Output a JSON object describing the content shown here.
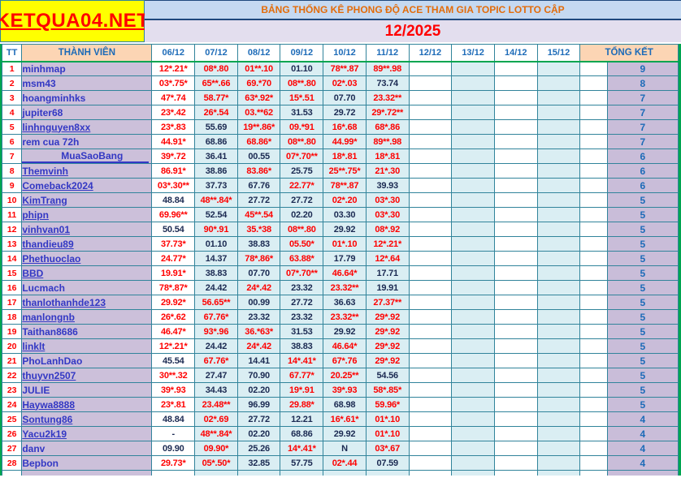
{
  "logo": {
    "text": "KETQUA04.NET"
  },
  "header": {
    "title": "BẢNG THỐNG KÊ PHONG ĐỘ ACE THAM GIA TOPIC  LOTTO CẬP",
    "month": "12/2025"
  },
  "columns": {
    "tt": "TT",
    "member": "THÀNH VIÊN",
    "dates": [
      "06/12",
      "07/12",
      "08/12",
      "09/12",
      "10/12",
      "11/12",
      "12/12",
      "13/12",
      "14/12",
      "15/12"
    ],
    "total": "TỔNG KẾT"
  },
  "colors": {
    "grid_border": "#31849b",
    "green_border": "#00a550",
    "red_value": "#ff0000",
    "dark_value": "#1b2a52",
    "name_blue": "#3338c4",
    "header_blue": "#1d6bb8",
    "name_bg": "#ccc0da",
    "pale_blue_bg": "#daeef3",
    "peach_bg": "#fcd5b4",
    "logo_bg": "#ffff00",
    "title_text": "#e36c0a",
    "title_bg": "#c5d9f1",
    "month_bg": "#e3deee",
    "total_bg": "#c9bdd9"
  },
  "blue_date_columns": [
    1,
    2,
    3,
    4,
    5,
    7,
    9
  ],
  "rows": [
    {
      "tt": "1",
      "name": "minhmap",
      "u": 0,
      "ind": 0,
      "total": "9",
      "vals": [
        [
          "12*.21*",
          "r"
        ],
        [
          "08*.80",
          "r"
        ],
        [
          "01**.10",
          "r"
        ],
        [
          "01.10",
          "d"
        ],
        [
          "78**.87",
          "r"
        ],
        [
          "89**.98",
          "r"
        ]
      ]
    },
    {
      "tt": "2",
      "name": "msm43",
      "u": 0,
      "ind": 0,
      "total": "8",
      "vals": [
        [
          "03*.75*",
          "r"
        ],
        [
          "65**.66",
          "r"
        ],
        [
          "69.*70",
          "r"
        ],
        [
          "08**.80",
          "r"
        ],
        [
          "02*.03",
          "r"
        ],
        [
          "73.74",
          "d"
        ]
      ]
    },
    {
      "tt": "3",
      "name": "hoangminhks",
      "u": 0,
      "ind": 0,
      "total": "7",
      "vals": [
        [
          "47*.74",
          "r"
        ],
        [
          "58.77*",
          "r"
        ],
        [
          "63*.92*",
          "r"
        ],
        [
          "15*.51",
          "r"
        ],
        [
          "07.70",
          "d"
        ],
        [
          "23.32**",
          "r"
        ]
      ]
    },
    {
      "tt": "4",
      "name": "jupiter68",
      "u": 0,
      "ind": 0,
      "total": "7",
      "vals": [
        [
          "23*.42",
          "r"
        ],
        [
          "26*.54",
          "r"
        ],
        [
          "03.**62",
          "r"
        ],
        [
          "31.53",
          "d"
        ],
        [
          "29.72",
          "d"
        ],
        [
          "29*.72**",
          "r"
        ]
      ]
    },
    {
      "tt": "5",
      "name": "linhnguyen8xx",
      "u": 1,
      "ind": 0,
      "total": "7",
      "vals": [
        [
          "23*.83",
          "r"
        ],
        [
          "55.69",
          "d"
        ],
        [
          "19**.86*",
          "r"
        ],
        [
          "09.*91",
          "r"
        ],
        [
          "16*.68",
          "r"
        ],
        [
          "68*.86",
          "r"
        ]
      ]
    },
    {
      "tt": "6",
      "name": "rem cua 72h",
      "u": 0,
      "ind": 0,
      "total": "7",
      "vals": [
        [
          "44.91*",
          "r"
        ],
        [
          "68.86",
          "d"
        ],
        [
          "68.86*",
          "r"
        ],
        [
          "08**.80",
          "r"
        ],
        [
          "44.99*",
          "r"
        ],
        [
          "89**.98",
          "r"
        ]
      ]
    },
    {
      "tt": "7",
      "name": "MuaSaoBang",
      "u": 1,
      "ind": 1,
      "total": "6",
      "vals": [
        [
          "39*.72",
          "r"
        ],
        [
          "36.41",
          "d"
        ],
        [
          "00.55",
          "d"
        ],
        [
          "07*.70**",
          "r"
        ],
        [
          "18*.81",
          "r"
        ],
        [
          "18*.81",
          "r"
        ]
      ]
    },
    {
      "tt": "8",
      "name": "Themvinh",
      "u": 1,
      "ind": 0,
      "total": "6",
      "vals": [
        [
          "86.91*",
          "r"
        ],
        [
          "38.86",
          "d"
        ],
        [
          "83.86*",
          "r"
        ],
        [
          "25.75",
          "d"
        ],
        [
          "25**.75*",
          "r"
        ],
        [
          "21*.30",
          "r"
        ]
      ]
    },
    {
      "tt": "9",
      "name": "Comeback2024",
      "u": 1,
      "ind": 0,
      "total": "6",
      "vals": [
        [
          "03*.30**",
          "r"
        ],
        [
          "37.73",
          "d"
        ],
        [
          "67.76",
          "d"
        ],
        [
          "22.77*",
          "r"
        ],
        [
          "78**.87",
          "r"
        ],
        [
          "39.93",
          "d"
        ]
      ]
    },
    {
      "tt": "10",
      "name": "KimTrang",
      "u": 1,
      "ind": 0,
      "total": "5",
      "vals": [
        [
          "48.84",
          "d"
        ],
        [
          "48**.84*",
          "r"
        ],
        [
          "27.72",
          "d"
        ],
        [
          "27.72",
          "d"
        ],
        [
          "02*.20",
          "r"
        ],
        [
          "03*.30",
          "r"
        ]
      ]
    },
    {
      "tt": "11",
      "name": "phipn",
      "u": 1,
      "ind": 0,
      "total": "5",
      "vals": [
        [
          "69.96**",
          "r"
        ],
        [
          "52.54",
          "d"
        ],
        [
          "45**.54",
          "r"
        ],
        [
          "02.20",
          "d"
        ],
        [
          "03.30",
          "d"
        ],
        [
          "03*.30",
          "r"
        ]
      ]
    },
    {
      "tt": "12",
      "name": "vinhvan01",
      "u": 1,
      "ind": 0,
      "total": "5",
      "vals": [
        [
          "50.54",
          "d"
        ],
        [
          "90*.91",
          "r"
        ],
        [
          "35.*38",
          "r"
        ],
        [
          "08**.80",
          "r"
        ],
        [
          "29.92",
          "d"
        ],
        [
          "08*.92",
          "r"
        ]
      ]
    },
    {
      "tt": "13",
      "name": "thandieu89",
      "u": 1,
      "ind": 0,
      "total": "5",
      "vals": [
        [
          "37.73*",
          "r"
        ],
        [
          "01.10",
          "d"
        ],
        [
          "38.83",
          "d"
        ],
        [
          "05.50*",
          "r"
        ],
        [
          "01*.10",
          "r"
        ],
        [
          "12*.21*",
          "r"
        ]
      ]
    },
    {
      "tt": "14",
      "name": "Phethuoclao",
      "u": 1,
      "ind": 0,
      "total": "5",
      "vals": [
        [
          "24.77*",
          "r"
        ],
        [
          "14.37",
          "d"
        ],
        [
          "78*.86*",
          "r"
        ],
        [
          "63.88*",
          "r"
        ],
        [
          "17.79",
          "d"
        ],
        [
          "12*.64",
          "r"
        ]
      ]
    },
    {
      "tt": "15",
      "name": "BBD",
      "u": 1,
      "ind": 0,
      "total": "5",
      "vals": [
        [
          "19.91*",
          "r"
        ],
        [
          "38.83",
          "d"
        ],
        [
          "07.70",
          "d"
        ],
        [
          "07*.70**",
          "r"
        ],
        [
          "46.64*",
          "r"
        ],
        [
          "17.71",
          "d"
        ]
      ]
    },
    {
      "tt": "16",
      "name": "Lucmach",
      "u": 0,
      "ind": 0,
      "total": "5",
      "vals": [
        [
          "78*.87*",
          "r"
        ],
        [
          "24.42",
          "d"
        ],
        [
          "24*.42",
          "r"
        ],
        [
          "23.32",
          "d"
        ],
        [
          "23.32**",
          "r"
        ],
        [
          "19.91",
          "d"
        ]
      ]
    },
    {
      "tt": "17",
      "name": "thanlothanhde123",
      "u": 1,
      "ind": 0,
      "total": "5",
      "vals": [
        [
          "29.92*",
          "r"
        ],
        [
          "56.65**",
          "r"
        ],
        [
          "00.99",
          "d"
        ],
        [
          "27.72",
          "d"
        ],
        [
          "36.63",
          "d"
        ],
        [
          "27.37**",
          "r"
        ]
      ]
    },
    {
      "tt": "18",
      "name": "manlongnb",
      "u": 1,
      "ind": 0,
      "total": "5",
      "vals": [
        [
          "26*.62",
          "r"
        ],
        [
          "67.76*",
          "r"
        ],
        [
          "23.32",
          "d"
        ],
        [
          "23.32",
          "d"
        ],
        [
          "23.32**",
          "r"
        ],
        [
          "29*.92",
          "r"
        ]
      ]
    },
    {
      "tt": "19",
      "name": "Taithan8686",
      "u": 0,
      "ind": 0,
      "total": "5",
      "vals": [
        [
          "46.47*",
          "r"
        ],
        [
          "93*.96",
          "r"
        ],
        [
          "36.*63*",
          "r"
        ],
        [
          "31.53",
          "d"
        ],
        [
          "29.92",
          "d"
        ],
        [
          "29*.92",
          "r"
        ]
      ]
    },
    {
      "tt": "20",
      "name": "linklt",
      "u": 1,
      "ind": 0,
      "total": "5",
      "vals": [
        [
          "12*.21*",
          "r"
        ],
        [
          "24.42",
          "d"
        ],
        [
          "24*.42",
          "r"
        ],
        [
          "38.83",
          "d"
        ],
        [
          "46.64*",
          "r"
        ],
        [
          "29*.92",
          "r"
        ]
      ]
    },
    {
      "tt": "21",
      "name": "PhoLanhDao",
      "u": 0,
      "ind": 0,
      "total": "5",
      "vals": [
        [
          "45.54",
          "d"
        ],
        [
          "67.76*",
          "r"
        ],
        [
          "14.41",
          "d"
        ],
        [
          "14*.41*",
          "r"
        ],
        [
          "67*.76",
          "r"
        ],
        [
          "29*.92",
          "r"
        ]
      ]
    },
    {
      "tt": "22",
      "name": "thuyvn2507",
      "u": 1,
      "ind": 0,
      "total": "5",
      "vals": [
        [
          "30**.32",
          "r"
        ],
        [
          "27.47",
          "d"
        ],
        [
          "70.90",
          "d"
        ],
        [
          "67.77*",
          "r"
        ],
        [
          "20.25**",
          "r"
        ],
        [
          "54.56",
          "d"
        ]
      ]
    },
    {
      "tt": "23",
      "name": "JULIE",
      "u": 0,
      "ind": 0,
      "total": "5",
      "vals": [
        [
          "39*.93",
          "r"
        ],
        [
          "34.43",
          "d"
        ],
        [
          "02.20",
          "d"
        ],
        [
          "19*.91",
          "r"
        ],
        [
          "39*.93",
          "r"
        ],
        [
          "58*.85*",
          "r"
        ]
      ]
    },
    {
      "tt": "24",
      "name": "Haywa8888",
      "u": 1,
      "ind": 0,
      "total": "5",
      "vals": [
        [
          "23*.81",
          "r"
        ],
        [
          "23.48**",
          "r"
        ],
        [
          "96.99",
          "d"
        ],
        [
          "29.88*",
          "r"
        ],
        [
          "68.98",
          "d"
        ],
        [
          "59.96*",
          "r"
        ]
      ]
    },
    {
      "tt": "25",
      "name": "Sontung86",
      "u": 1,
      "ind": 0,
      "total": "4",
      "vals": [
        [
          "48.84",
          "d"
        ],
        [
          "02*.69",
          "r"
        ],
        [
          "27.72",
          "d"
        ],
        [
          "12.21",
          "d"
        ],
        [
          "16*.61*",
          "r"
        ],
        [
          "01*.10",
          "r"
        ]
      ]
    },
    {
      "tt": "26",
      "name": "Yacu2k19",
      "u": 1,
      "ind": 0,
      "total": "4",
      "vals": [
        [
          "-",
          "d"
        ],
        [
          "48**.84*",
          "r"
        ],
        [
          "02.20",
          "d"
        ],
        [
          "68.86",
          "d"
        ],
        [
          "29.92",
          "d"
        ],
        [
          "01*.10",
          "r"
        ]
      ]
    },
    {
      "tt": "27",
      "name": "danv",
      "u": 0,
      "ind": 0,
      "total": "4",
      "vals": [
        [
          "09.90",
          "d"
        ],
        [
          "09.90*",
          "r"
        ],
        [
          "25.26",
          "d"
        ],
        [
          "14*.41*",
          "r"
        ],
        [
          "N",
          "d"
        ],
        [
          "03*.67",
          "r"
        ]
      ]
    },
    {
      "tt": "28",
      "name": "Bepbon",
      "u": 0,
      "ind": 0,
      "total": "4",
      "vals": [
        [
          "29.73*",
          "r"
        ],
        [
          "05*.50*",
          "r"
        ],
        [
          "32.85",
          "d"
        ],
        [
          "57.75",
          "d"
        ],
        [
          "02*.44",
          "r"
        ],
        [
          "07.59",
          "d"
        ]
      ]
    }
  ]
}
